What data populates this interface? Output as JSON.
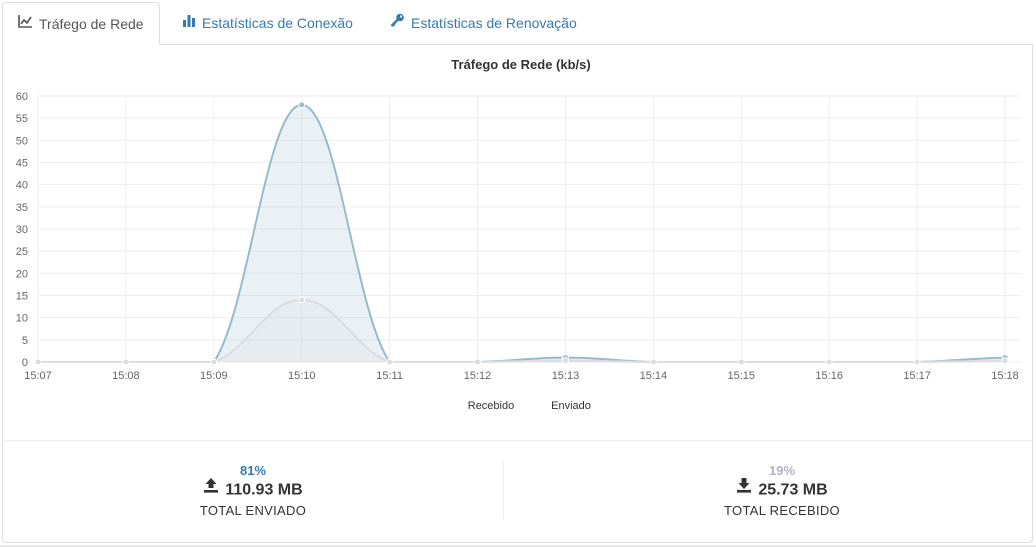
{
  "tabs": [
    {
      "label": "Tráfego de Rede",
      "icon": "line-chart-icon",
      "active": true
    },
    {
      "label": "Estatísticas de Conexão",
      "icon": "bar-chart-icon",
      "active": false
    },
    {
      "label": "Estatísticas de Renovação",
      "icon": "key-icon",
      "active": false
    }
  ],
  "chart_data": {
    "type": "area",
    "title": "Tráfego de Rede (kb/s)",
    "xlabel": "",
    "ylabel": "",
    "categories": [
      "15:07",
      "15:08",
      "15:09",
      "15:10",
      "15:11",
      "15:12",
      "15:13",
      "15:14",
      "15:15",
      "15:16",
      "15:17",
      "15:18"
    ],
    "yticks": [
      0,
      5,
      10,
      15,
      20,
      25,
      30,
      35,
      40,
      45,
      50,
      55,
      60
    ],
    "ylim": [
      0,
      60
    ],
    "grid": true,
    "legend_placement": "bottom",
    "series": [
      {
        "name": "Recebido",
        "color": "#dcdcdc",
        "values": [
          0,
          0,
          0,
          14,
          0,
          0,
          0.3,
          0,
          0,
          0,
          0,
          0.3
        ]
      },
      {
        "name": "Enviado",
        "color": "#97bbcd",
        "values": [
          0,
          0,
          0,
          58,
          0,
          0,
          1,
          0,
          0,
          0,
          0,
          1
        ]
      }
    ]
  },
  "stats": {
    "sent": {
      "percent": "81%",
      "percent_color": "#337ab7",
      "amount": "110.93 MB",
      "label": "TOTAL ENVIADO",
      "icon": "upload-icon"
    },
    "received": {
      "percent": "19%",
      "percent_color": "#b3b3cc",
      "amount": "25.73 MB",
      "label": "TOTAL RECEBIDO",
      "icon": "download-icon"
    }
  }
}
